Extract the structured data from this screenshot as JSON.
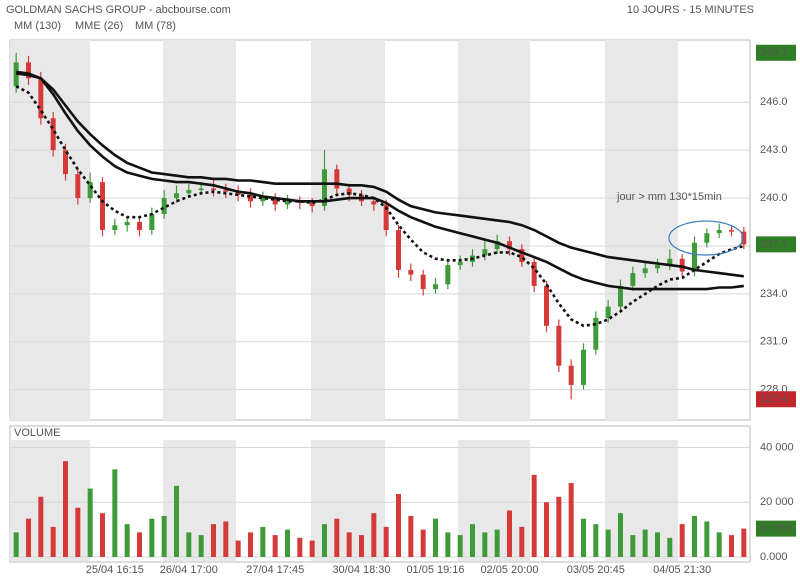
{
  "chart_data": {
    "type": "candlestick",
    "title": "GOLDMAN SACHS GROUP - abcbourse.com",
    "subtitle": "10 JOURS - 15 MINUTES",
    "x": [
      null,
      null,
      null,
      null,
      null,
      null,
      null,
      null,
      "25/04 16:15",
      null,
      null,
      null,
      null,
      null,
      "26/04 17:00",
      null,
      null,
      null,
      null,
      null,
      null,
      "27/04 17:45",
      null,
      null,
      null,
      null,
      null,
      null,
      "30/04 18:30",
      null,
      null,
      null,
      null,
      null,
      "01/05 19:16",
      null,
      null,
      null,
      null,
      null,
      "02/05 20:00",
      null,
      null,
      null,
      null,
      null,
      null,
      "03/05 20:45",
      null,
      null,
      null,
      null,
      null,
      null,
      "04/05 21:30",
      null,
      null,
      null,
      null,
      null
    ],
    "open": [
      247,
      248.5,
      247.5,
      245,
      243,
      241.5,
      240,
      241,
      238,
      238.3,
      238.5,
      238,
      239,
      240,
      240.3,
      240.5,
      240.6,
      240.5,
      240.4,
      240.2,
      239.8,
      240,
      239.6,
      239.8,
      239.7,
      239.5,
      241.8,
      240.6,
      240.2,
      239.8,
      239.6,
      238,
      235.5,
      235.2,
      234.3,
      234.6,
      235.8,
      236,
      236.4,
      236.8,
      237.3,
      236.8,
      236,
      234.5,
      232,
      229.5,
      228.3,
      230.5,
      232.5,
      233.2,
      234.5,
      235.3,
      235.6,
      235.8,
      236.2,
      235.4,
      237.2,
      237.8,
      238,
      237.9
    ],
    "high": [
      249.1,
      248.9,
      247.9,
      245.4,
      243.4,
      241.9,
      241.6,
      241.3,
      238.7,
      238.9,
      238.8,
      239.4,
      240.5,
      240.8,
      240.9,
      241.0,
      241.2,
      240.9,
      240.8,
      240.6,
      240.4,
      240.3,
      240.2,
      240.1,
      240.0,
      243.0,
      242.1,
      240.9,
      240.5,
      240.1,
      239.9,
      238.3,
      235.9,
      235.5,
      235.0,
      236.2,
      236.4,
      236.8,
      237.3,
      237.7,
      237.6,
      237.1,
      236.3,
      234.8,
      232.4,
      229.9,
      230.9,
      232.9,
      233.6,
      234.9,
      235.7,
      236.0,
      236.2,
      236.8,
      236.5,
      237.6,
      238.1,
      238.4,
      238.3,
      238.2
    ],
    "low": [
      246.6,
      247.1,
      244.6,
      242.6,
      241.1,
      239.6,
      239.7,
      237.6,
      237.7,
      237.9,
      237.6,
      237.7,
      238.7,
      239.7,
      240.0,
      240.2,
      240.1,
      240.0,
      239.8,
      239.4,
      239.5,
      239.2,
      239.3,
      239.3,
      239.1,
      239.2,
      240.2,
      239.8,
      239.5,
      239.2,
      237.6,
      235.0,
      234.8,
      233.9,
      234.0,
      234.3,
      235.5,
      235.7,
      236.1,
      236.5,
      236.4,
      235.7,
      234.1,
      231.6,
      229.1,
      227.4,
      228.0,
      230.2,
      232.2,
      232.9,
      234.2,
      235.0,
      235.3,
      235.5,
      235.1,
      235.1,
      236.9,
      237.5,
      237.6,
      236.8
    ],
    "close": [
      248.5,
      247.5,
      245,
      243,
      241.5,
      240,
      241,
      238,
      238.3,
      238.5,
      238,
      239,
      240,
      240.3,
      240.5,
      240.6,
      240.5,
      240.4,
      240.2,
      239.8,
      240,
      239.6,
      239.8,
      239.7,
      239.5,
      241.8,
      240.6,
      240.2,
      239.8,
      239.6,
      238,
      235.5,
      235.2,
      234.3,
      234.6,
      235.8,
      236,
      236.4,
      236.8,
      237.3,
      236.8,
      236,
      234.5,
      232,
      229.5,
      228.3,
      230.5,
      232.5,
      233.2,
      234.5,
      235.3,
      235.6,
      235.8,
      236.2,
      235.4,
      237.2,
      237.8,
      238,
      237.9,
      237.1
    ],
    "up_color": "#3f9a3a",
    "down_color": "#d43a3a",
    "ylim": [
      226.1,
      249.9
    ],
    "yticks": [
      {
        "value": 228,
        "label": "228.0"
      },
      {
        "value": 231,
        "label": "231.0"
      },
      {
        "value": 234,
        "label": "234.0"
      },
      {
        "value": 237,
        "label": "237.0"
      },
      {
        "value": 240,
        "label": "240.0"
      },
      {
        "value": 243,
        "label": "243.0"
      },
      {
        "value": 246,
        "label": "246.0"
      }
    ],
    "grid": true,
    "series": [
      {
        "name": "MM (130)",
        "color": "#111111",
        "style": "solid",
        "values": [
          247.8,
          247.7,
          247.5,
          246.8,
          245.8,
          244.8,
          244,
          243.3,
          242.7,
          242.2,
          241.9,
          241.6,
          241.5,
          241.4,
          241.3,
          241.3,
          241.2,
          241.2,
          241.1,
          241.1,
          241,
          240.9,
          240.9,
          240.9,
          240.9,
          240.9,
          240.9,
          240.8,
          240.8,
          240.7,
          240.4,
          239.9,
          239.5,
          239.3,
          239.1,
          239,
          238.9,
          238.8,
          238.7,
          238.6,
          238.5,
          238.3,
          238,
          237.6,
          237.2,
          236.9,
          236.7,
          236.5,
          236.3,
          236.2,
          236.1,
          236,
          235.9,
          235.8,
          235.7,
          235.5,
          235.4,
          235.3,
          235.2,
          235.1
        ]
      },
      {
        "name": "MME (26)",
        "color": "#111111",
        "style": "dotted",
        "values": [
          247,
          246.6,
          245.5,
          244.3,
          243,
          241.8,
          240.8,
          239.8,
          239.2,
          238.8,
          238.8,
          239,
          239.4,
          239.8,
          240.1,
          240.3,
          240.4,
          240.3,
          240.2,
          240.1,
          240,
          239.9,
          239.8,
          239.8,
          239.7,
          239.9,
          240.2,
          240.3,
          240.2,
          240,
          239.4,
          238.3,
          237.4,
          236.6,
          236.2,
          236.1,
          236.1,
          236.2,
          236.4,
          236.6,
          236.6,
          236.3,
          235.6,
          234.6,
          233.4,
          232.4,
          232,
          232.1,
          232.4,
          232.9,
          233.5,
          234,
          234.5,
          234.9,
          235,
          235.5,
          236,
          236.5,
          236.8,
          237
        ]
      },
      {
        "name": "MM (78)",
        "color": "#111111",
        "style": "solid",
        "values": [
          247.9,
          247.8,
          247.5,
          246.5,
          245.3,
          244.2,
          243.3,
          242.6,
          242,
          241.6,
          241.4,
          241.2,
          241.1,
          241,
          241,
          240.9,
          240.8,
          240.6,
          240.4,
          240.3,
          240.1,
          240,
          239.9,
          239.8,
          239.8,
          239.8,
          239.9,
          240,
          240,
          240,
          239.7,
          239.2,
          238.8,
          238.5,
          238.2,
          238,
          237.8,
          237.6,
          237.4,
          237.2,
          236.9,
          236.6,
          236.3,
          236,
          235.6,
          235.2,
          234.9,
          234.7,
          234.5,
          234.4,
          234.3,
          234.3,
          234.3,
          234.3,
          234.3,
          234.3,
          234.3,
          234.4,
          234.4,
          234.5
        ]
      }
    ],
    "annotation": "jour > mm 130*15min",
    "price_labels": [
      {
        "value": 249.1,
        "color": "#2f7d24"
      },
      {
        "value": 237.1,
        "color": "#2f7d24"
      },
      {
        "value": 227.4,
        "color": "#c0282d"
      }
    ],
    "volume": {
      "title": "VOLUME",
      "values": [
        9000,
        14000,
        22000,
        11000,
        35000,
        18000,
        25000,
        16000,
        32000,
        12000,
        9000,
        14000,
        15000,
        26000,
        9000,
        8000,
        12000,
        13000,
        6000,
        9000,
        11000,
        8000,
        10000,
        7000,
        6000,
        12000,
        14000,
        9000,
        8000,
        16000,
        11000,
        23000,
        15000,
        10000,
        14000,
        9000,
        8000,
        12000,
        9000,
        10000,
        17000,
        11000,
        30000,
        20000,
        22000,
        27000,
        14000,
        12000,
        10000,
        16000,
        8000,
        10000,
        9000,
        7000,
        12000,
        15000,
        13000,
        9000,
        8000,
        10363
      ],
      "ylim": [
        0,
        42000
      ],
      "yticks": [
        {
          "value": 0,
          "label": "0.000"
        },
        {
          "value": 20000,
          "label": "20 000"
        },
        {
          "value": 40000,
          "label": "40 000"
        }
      ],
      "last": {
        "value": 10363,
        "label": "10 363",
        "color": "#2f7d24"
      }
    }
  }
}
